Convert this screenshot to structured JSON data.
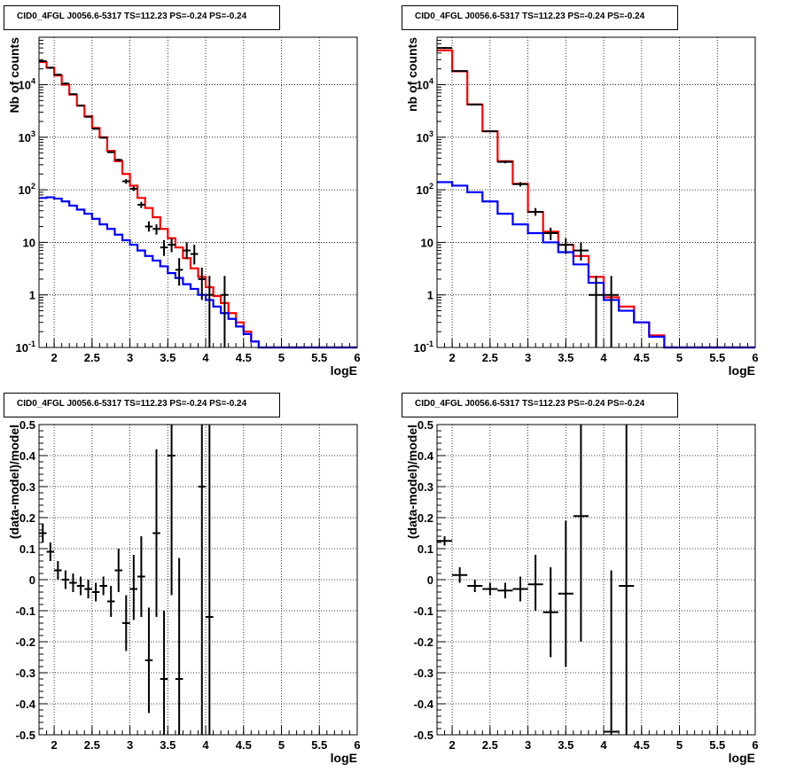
{
  "chart_data": [
    {
      "type": "line",
      "title": "CID0_4FGL J0056.6-5317 TS=112.23 PS=-0.24 PS=-0.24",
      "xlabel": "logE",
      "ylabel": "Nb of counts",
      "xlim": [
        1.8,
        6.0
      ],
      "ylim": [
        0.1,
        80000
      ],
      "yscale": "log",
      "grid": true,
      "xticks": [
        "2",
        "2.5",
        "3",
        "3.5",
        "4",
        "4.5",
        "5",
        "5.5",
        "6"
      ],
      "yticks": [
        "10^-1",
        "1",
        "10",
        "10^2",
        "10^3",
        "10^4"
      ],
      "bin_edges": [
        1.8,
        1.9,
        2.0,
        2.1,
        2.2,
        2.3,
        2.4,
        2.5,
        2.6,
        2.7,
        2.8,
        2.9,
        3.0,
        3.1,
        3.2,
        3.3,
        3.4,
        3.5,
        3.6,
        3.7,
        3.8,
        3.9,
        4.0,
        4.1,
        4.2,
        4.3,
        4.4,
        4.5,
        4.6,
        4.7,
        4.8,
        4.9,
        5.0,
        5.1,
        5.2,
        5.3,
        5.4,
        5.5,
        5.6,
        5.7,
        5.8,
        5.9,
        6.0
      ],
      "series": [
        {
          "color": "#ff0000",
          "values": [
            27000,
            21000,
            15000,
            10000,
            6500,
            4000,
            2500,
            1500,
            1000,
            550,
            350,
            200,
            120,
            70,
            45,
            30,
            18,
            12,
            8,
            5,
            3.2,
            2.2,
            1.4,
            0.95,
            0.7,
            0.45,
            0.3,
            0.2,
            0.13,
            0.1,
            0.1,
            0.1,
            0.1,
            0.1,
            0.1,
            0.1,
            0.1,
            0.1,
            0.1,
            0.1,
            0.1,
            0.1
          ]
        },
        {
          "color": "#0000ff",
          "values": [
            70,
            72,
            68,
            60,
            50,
            42,
            35,
            28,
            22,
            18,
            14,
            11,
            9,
            7,
            5.5,
            4.5,
            3.5,
            2.6,
            2.1,
            1.6,
            1.3,
            1.0,
            0.8,
            0.6,
            0.45,
            0.35,
            0.25,
            0.18,
            0.13,
            0.1,
            0.1,
            0.1,
            0.1,
            0.1,
            0.1,
            0.1,
            0.1,
            0.1,
            0.1,
            0.1,
            0.1,
            0.1
          ]
        }
      ],
      "points": [
        {
          "x": 1.85,
          "y": 28000,
          "xerr": 0.05,
          "lo": 27000,
          "hi": 29000
        },
        {
          "x": 1.95,
          "y": 21000,
          "xerr": 0.05,
          "lo": 20000,
          "hi": 22000
        },
        {
          "x": 2.05,
          "y": 15500,
          "xerr": 0.05,
          "lo": 15000,
          "hi": 16000
        },
        {
          "x": 2.15,
          "y": 10500,
          "xerr": 0.05,
          "lo": 10000,
          "hi": 11000
        },
        {
          "x": 2.25,
          "y": 6600,
          "xerr": 0.05,
          "lo": 6400,
          "hi": 6800
        },
        {
          "x": 2.35,
          "y": 4000,
          "xerr": 0.05,
          "lo": 3900,
          "hi": 4100
        },
        {
          "x": 2.45,
          "y": 2450,
          "xerr": 0.05,
          "lo": 2400,
          "hi": 2500
        },
        {
          "x": 2.55,
          "y": 1450,
          "xerr": 0.05,
          "lo": 1400,
          "hi": 1500
        },
        {
          "x": 2.65,
          "y": 980,
          "xerr": 0.05,
          "lo": 950,
          "hi": 1010
        },
        {
          "x": 2.75,
          "y": 520,
          "xerr": 0.05,
          "lo": 500,
          "hi": 545
        },
        {
          "x": 2.85,
          "y": 370,
          "xerr": 0.05,
          "lo": 350,
          "hi": 390
        },
        {
          "x": 2.95,
          "y": 145,
          "xerr": 0.05,
          "lo": 130,
          "hi": 160
        },
        {
          "x": 3.05,
          "y": 105,
          "xerr": 0.05,
          "lo": 95,
          "hi": 115
        },
        {
          "x": 3.15,
          "y": 52,
          "xerr": 0.05,
          "lo": 45,
          "hi": 59
        },
        {
          "x": 3.25,
          "y": 20,
          "xerr": 0.05,
          "lo": 16,
          "hi": 25
        },
        {
          "x": 3.35,
          "y": 18,
          "xerr": 0.05,
          "lo": 14,
          "hi": 22
        },
        {
          "x": 3.45,
          "y": 8,
          "xerr": 0.05,
          "lo": 5.5,
          "hi": 11
        },
        {
          "x": 3.55,
          "y": 9,
          "xerr": 0.05,
          "lo": 6.5,
          "hi": 12
        },
        {
          "x": 3.65,
          "y": 3,
          "xerr": 0.05,
          "lo": 1.5,
          "hi": 5
        },
        {
          "x": 3.75,
          "y": 7,
          "xerr": 0.05,
          "lo": 4.8,
          "hi": 10
        },
        {
          "x": 3.85,
          "y": 6,
          "xerr": 0.05,
          "lo": 3.8,
          "hi": 9
        },
        {
          "x": 3.95,
          "y": 2,
          "xerr": 0.05,
          "lo": 0.8,
          "hi": 3.3
        },
        {
          "x": 4.05,
          "y": 1,
          "xerr": 0.05,
          "lo": 0.1,
          "hi": 2.3
        },
        {
          "x": 4.25,
          "y": 1,
          "xerr": 0.05,
          "lo": 0.1,
          "hi": 2.3
        }
      ]
    },
    {
      "type": "line",
      "title": "CID0_4FGL J0056.6-5317 TS=112.23 PS=-0.24 PS=-0.24",
      "xlabel": "logE",
      "ylabel": "nb of counts",
      "xlim": [
        1.8,
        6.0
      ],
      "ylim": [
        0.1,
        80000
      ],
      "yscale": "log",
      "grid": true,
      "xticks": [
        "2",
        "2.5",
        "3",
        "3.5",
        "4",
        "4.5",
        "5",
        "5.5",
        "6"
      ],
      "yticks": [
        "10^-1",
        "1",
        "10",
        "10^2",
        "10^3",
        "10^4"
      ],
      "bin_edges": [
        1.8,
        2.0,
        2.2,
        2.4,
        2.6,
        2.8,
        3.0,
        3.2,
        3.4,
        3.6,
        3.8,
        4.0,
        4.2,
        4.4,
        4.6,
        4.8,
        5.0,
        5.2,
        5.4,
        5.6,
        5.8,
        6.0
      ],
      "series": [
        {
          "color": "#ff0000",
          "values": [
            45000,
            18000,
            4200,
            1300,
            350,
            130,
            38,
            16,
            9,
            5.5,
            2.2,
            0.9,
            0.6,
            0.3,
            0.17,
            0.1,
            0.1,
            0.1,
            0.1,
            0.1,
            0.1
          ]
        },
        {
          "color": "#0000ff",
          "values": [
            140,
            120,
            90,
            60,
            35,
            22,
            15,
            10,
            6.5,
            3.8,
            1.7,
            0.8,
            0.5,
            0.3,
            0.16,
            0.1,
            0.1,
            0.1,
            0.1,
            0.1,
            0.1
          ]
        }
      ],
      "points": [
        {
          "x": 1.9,
          "y": 50000,
          "xerr": 0.1,
          "lo": 48000,
          "hi": 52000
        },
        {
          "x": 2.1,
          "y": 18200,
          "xerr": 0.1,
          "lo": 17800,
          "hi": 18600
        },
        {
          "x": 2.3,
          "y": 4200,
          "xerr": 0.1,
          "lo": 4100,
          "hi": 4300
        },
        {
          "x": 2.5,
          "y": 1300,
          "xerr": 0.1,
          "lo": 1250,
          "hi": 1350
        },
        {
          "x": 2.7,
          "y": 340,
          "xerr": 0.1,
          "lo": 320,
          "hi": 360
        },
        {
          "x": 2.9,
          "y": 128,
          "xerr": 0.1,
          "lo": 115,
          "hi": 140
        },
        {
          "x": 3.1,
          "y": 38,
          "xerr": 0.1,
          "lo": 32,
          "hi": 45
        },
        {
          "x": 3.3,
          "y": 15,
          "xerr": 0.1,
          "lo": 11,
          "hi": 19
        },
        {
          "x": 3.5,
          "y": 9,
          "xerr": 0.1,
          "lo": 6,
          "hi": 12
        },
        {
          "x": 3.7,
          "y": 7,
          "xerr": 0.1,
          "lo": 4.5,
          "hi": 10
        },
        {
          "x": 3.9,
          "y": 1,
          "xerr": 0.1,
          "lo": 0.1,
          "hi": 2.3
        },
        {
          "x": 4.1,
          "y": 1,
          "xerr": 0.1,
          "lo": 0.1,
          "hi": 2.3
        }
      ]
    },
    {
      "type": "scatter",
      "title": "CID0_4FGL J0056.6-5317 TS=112.23 PS=-0.24 PS=-0.24",
      "xlabel": "logE",
      "ylabel": "(data-model)/model",
      "xlim": [
        1.8,
        6.0
      ],
      "ylim": [
        -0.5,
        0.5
      ],
      "grid": true,
      "xticks": [
        "2",
        "2.5",
        "3",
        "3.5",
        "4",
        "4.5",
        "5",
        "5.5",
        "6"
      ],
      "yticks": [
        "-0.5",
        "-0.4",
        "-0.3",
        "-0.2",
        "-0.1",
        "0",
        "0.1",
        "0.2",
        "0.3",
        "0.4",
        "0.5"
      ],
      "points": [
        {
          "x": 1.85,
          "y": 0.15,
          "xerr": 0.05,
          "lo": 0.12,
          "hi": 0.18
        },
        {
          "x": 1.95,
          "y": 0.09,
          "xerr": 0.05,
          "lo": 0.06,
          "hi": 0.12
        },
        {
          "x": 2.05,
          "y": 0.03,
          "xerr": 0.05,
          "lo": 0.0,
          "hi": 0.06
        },
        {
          "x": 2.15,
          "y": 0.0,
          "xerr": 0.05,
          "lo": -0.03,
          "hi": 0.03
        },
        {
          "x": 2.25,
          "y": -0.01,
          "xerr": 0.05,
          "lo": -0.04,
          "hi": 0.02
        },
        {
          "x": 2.35,
          "y": -0.02,
          "xerr": 0.05,
          "lo": -0.05,
          "hi": 0.01
        },
        {
          "x": 2.45,
          "y": -0.03,
          "xerr": 0.05,
          "lo": -0.06,
          "hi": 0.0
        },
        {
          "x": 2.55,
          "y": -0.04,
          "xerr": 0.05,
          "lo": -0.07,
          "hi": -0.01
        },
        {
          "x": 2.65,
          "y": -0.02,
          "xerr": 0.05,
          "lo": -0.05,
          "hi": 0.01
        },
        {
          "x": 2.75,
          "y": -0.07,
          "xerr": 0.05,
          "lo": -0.12,
          "hi": -0.02
        },
        {
          "x": 2.85,
          "y": 0.03,
          "xerr": 0.05,
          "lo": -0.04,
          "hi": 0.1
        },
        {
          "x": 2.95,
          "y": -0.14,
          "xerr": 0.05,
          "lo": -0.23,
          "hi": -0.05
        },
        {
          "x": 3.05,
          "y": -0.03,
          "xerr": 0.05,
          "lo": -0.13,
          "hi": 0.08
        },
        {
          "x": 3.15,
          "y": 0.01,
          "xerr": 0.05,
          "lo": -0.12,
          "hi": 0.14
        },
        {
          "x": 3.25,
          "y": -0.26,
          "xerr": 0.05,
          "lo": -0.43,
          "hi": -0.09
        },
        {
          "x": 3.35,
          "y": 0.15,
          "xerr": 0.05,
          "lo": -0.12,
          "hi": 0.42
        },
        {
          "x": 3.45,
          "y": -0.32,
          "xerr": 0.05,
          "lo": -0.5,
          "hi": -0.1
        },
        {
          "x": 3.55,
          "y": 0.4,
          "xerr": 0.05,
          "lo": -0.05,
          "hi": 0.5
        },
        {
          "x": 3.65,
          "y": -0.32,
          "xerr": 0.05,
          "lo": -0.5,
          "hi": 0.07
        },
        {
          "x": 3.95,
          "y": 0.3,
          "xerr": 0.05,
          "lo": -0.5,
          "hi": 0.5
        },
        {
          "x": 4.05,
          "y": -0.12,
          "xerr": 0.05,
          "lo": -0.5,
          "hi": 0.5
        }
      ]
    },
    {
      "type": "scatter",
      "title": "CID0_4FGL J0056.6-5317 TS=112.23 PS=-0.24 PS=-0.24",
      "xlabel": "logE",
      "ylabel": "(data-model)/model",
      "xlim": [
        1.8,
        6.0
      ],
      "ylim": [
        -0.5,
        0.5
      ],
      "grid": true,
      "xticks": [
        "2",
        "2.5",
        "3",
        "3.5",
        "4",
        "4.5",
        "5",
        "5.5",
        "6"
      ],
      "yticks": [
        "-0.5",
        "-0.4",
        "-0.3",
        "-0.2",
        "-0.1",
        "0",
        "0.1",
        "0.2",
        "0.3",
        "0.4",
        "0.5"
      ],
      "points": [
        {
          "x": 1.9,
          "y": 0.125,
          "xerr": 0.1,
          "lo": 0.11,
          "hi": 0.14
        },
        {
          "x": 2.1,
          "y": 0.015,
          "xerr": 0.1,
          "lo": -0.01,
          "hi": 0.04
        },
        {
          "x": 2.3,
          "y": -0.02,
          "xerr": 0.1,
          "lo": -0.04,
          "hi": 0.0
        },
        {
          "x": 2.5,
          "y": -0.03,
          "xerr": 0.1,
          "lo": -0.05,
          "hi": -0.01
        },
        {
          "x": 2.7,
          "y": -0.035,
          "xerr": 0.1,
          "lo": -0.06,
          "hi": -0.01
        },
        {
          "x": 2.9,
          "y": -0.03,
          "xerr": 0.1,
          "lo": -0.07,
          "hi": 0.01
        },
        {
          "x": 3.1,
          "y": -0.015,
          "xerr": 0.1,
          "lo": -0.1,
          "hi": 0.08
        },
        {
          "x": 3.3,
          "y": -0.105,
          "xerr": 0.1,
          "lo": -0.25,
          "hi": 0.04
        },
        {
          "x": 3.5,
          "y": -0.045,
          "xerr": 0.1,
          "lo": -0.28,
          "hi": 0.19
        },
        {
          "x": 3.7,
          "y": 0.205,
          "xerr": 0.1,
          "lo": -0.2,
          "hi": 0.5
        },
        {
          "x": 4.1,
          "y": -0.49,
          "xerr": 0.1,
          "lo": -0.5,
          "hi": 0.03
        },
        {
          "x": 4.3,
          "y": -0.02,
          "xerr": 0.1,
          "lo": -0.5,
          "hi": 0.5
        }
      ]
    }
  ]
}
